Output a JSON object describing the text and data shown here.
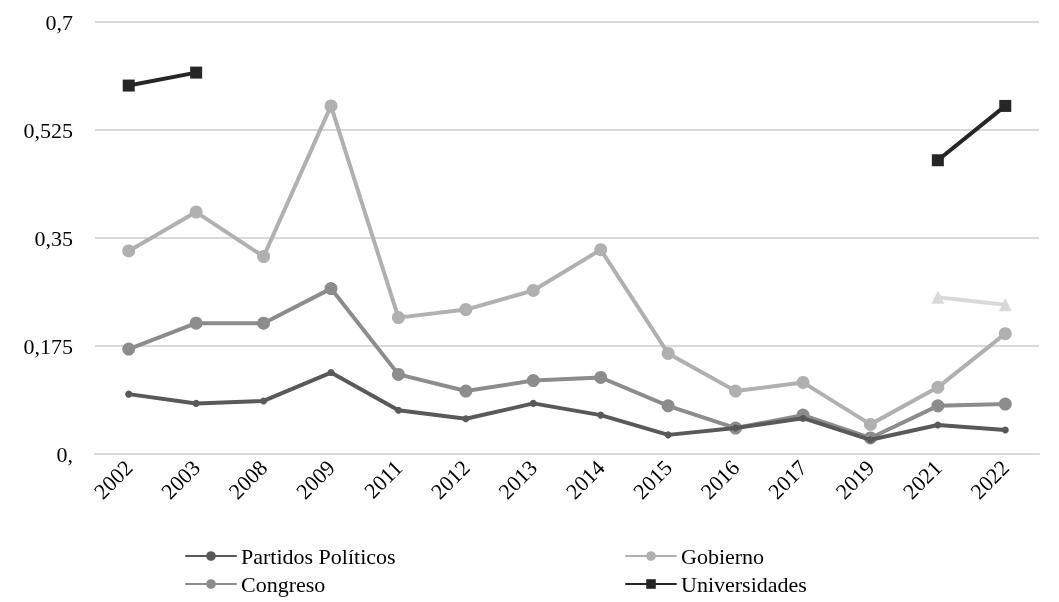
{
  "chart_data": {
    "type": "line",
    "categories": [
      "2002",
      "2003",
      "2008",
      "2009",
      "2011",
      "2012",
      "2013",
      "2014",
      "2015",
      "2016",
      "2017",
      "2019",
      "2021",
      "2022"
    ],
    "series": [
      {
        "name": "Partidos Políticos",
        "color": "#595959",
        "marker": "circle",
        "values": [
          0.097,
          0.082,
          0.086,
          0.132,
          0.071,
          0.057,
          0.082,
          0.063,
          0.031,
          0.042,
          0.058,
          0.023,
          0.047,
          0.039
        ]
      },
      {
        "name": "Gobierno",
        "color": "#b0b0b0",
        "marker": "circle",
        "values": [
          0.329,
          0.392,
          0.32,
          0.564,
          0.221,
          0.234,
          0.265,
          0.331,
          0.163,
          0.102,
          0.116,
          0.048,
          0.108,
          0.195
        ]
      },
      {
        "name": "Congreso",
        "color": "#8c8c8c",
        "marker": "circle",
        "values": [
          0.17,
          0.212,
          0.212,
          0.268,
          0.129,
          0.102,
          0.119,
          0.124,
          0.078,
          0.042,
          0.063,
          0.026,
          0.078,
          0.081
        ]
      },
      {
        "name": "Universidades",
        "color": "#262626",
        "marker": "square",
        "values": [
          0.597,
          0.618,
          null,
          null,
          null,
          null,
          null,
          null,
          null,
          null,
          null,
          null,
          0.476,
          0.564
        ]
      },
      {
        "color": "#d9d9d9",
        "marker": "triangle",
        "values": [
          null,
          null,
          null,
          null,
          null,
          null,
          null,
          null,
          null,
          null,
          null,
          null,
          0.254,
          0.242
        ]
      }
    ],
    "ylim": [
      0,
      0.7
    ],
    "yticks": [
      {
        "value": 0,
        "label": "0,"
      },
      {
        "value": 0.175,
        "label": "0,175"
      },
      {
        "value": 0.35,
        "label": "0,35"
      },
      {
        "value": 0.525,
        "label": "0,525"
      },
      {
        "value": 0.7,
        "label": "0,7"
      }
    ],
    "grid": "y",
    "legend": "bottom",
    "line_style": "solid"
  }
}
